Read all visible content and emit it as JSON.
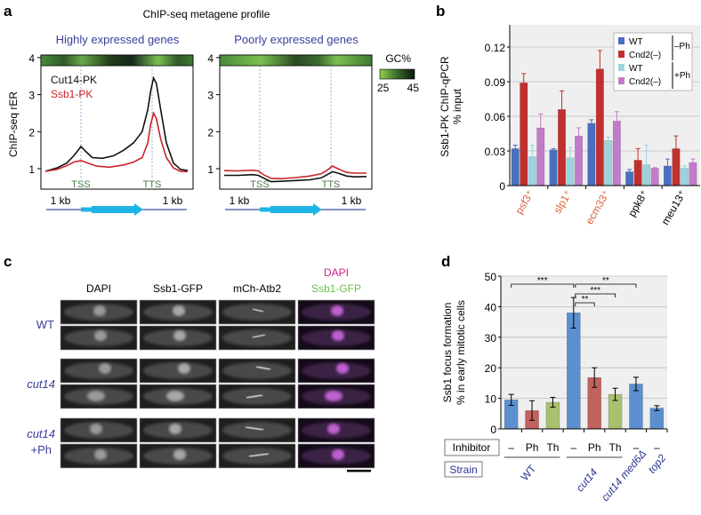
{
  "panels": {
    "a": {
      "letter": "a",
      "title": "ChIP-seq metagene profile",
      "subtitle_left": "Highly expressed genes",
      "subtitle_right": "Poorly expressed genes",
      "ylabel": "ChIP-seq rER",
      "legend_cut14": "Cut14-PK",
      "legend_ssb1": "Ssb1-PK",
      "gc_label": "GC%",
      "gc_min": "25",
      "gc_max": "45",
      "tss": "TSS",
      "tts": "TTS",
      "kb_left": "1 kb",
      "kb_right": "1 kb"
    },
    "b": {
      "letter": "b",
      "ylabel1": "Ssb1-PK ChIP-qPCR",
      "ylabel2": "% input",
      "legend_minus_ph": "–Ph",
      "legend_plus_ph": "+Ph"
    },
    "c": {
      "letter": "c",
      "columns": [
        "DAPI",
        "Ssb1-GFP",
        "mCh-Atb2"
      ],
      "merge_top": "DAPI",
      "merge_bottom": "Ssb1-GFP",
      "rows": [
        "WT",
        "cut14",
        "cut14",
        "+Ph"
      ]
    },
    "d": {
      "letter": "d",
      "ylabel1": "Ssb1 focus formation",
      "ylabel2": "% in early mitotic cells",
      "inhibitor_label": "Inhibitor",
      "strain_label": "Strain"
    }
  },
  "colors": {
    "cut14": "#111111",
    "ssb1": "#c8242b",
    "b_wt": "#4a6fc0",
    "b_cnd2": "#c0302e",
    "b_wt_ph": "#9dd2de",
    "b_cnd2_ph": "#c07cc8",
    "d_none": "#5b8fd0",
    "d_ph": "#c0625e",
    "d_th": "#a9c06e",
    "gene": "#1fb4e6",
    "axis_blue": "#4050a0",
    "orange": "#d9603a",
    "tss_green": "#4a7a4a"
  },
  "chart_data": [
    {
      "type": "line",
      "title": "Highly expressed genes",
      "ylabel": "ChIP-seq rER",
      "ylim": [
        0.45,
        4
      ],
      "yticks": [
        1,
        2,
        3,
        4
      ],
      "x_units": "metagene position (%; TSS=25, TTS=75)",
      "series": [
        {
          "name": "Cut14-PK",
          "x": [
            0,
            8,
            15,
            20,
            23,
            25,
            28,
            33,
            40,
            48,
            55,
            62,
            68,
            72,
            74,
            76,
            78,
            81,
            85,
            90,
            95,
            100
          ],
          "y": [
            0.93,
            1.02,
            1.15,
            1.35,
            1.5,
            1.6,
            1.48,
            1.3,
            1.28,
            1.35,
            1.5,
            1.7,
            2.0,
            2.6,
            3.1,
            3.45,
            3.3,
            2.6,
            1.7,
            1.15,
            0.98,
            0.95
          ]
        },
        {
          "name": "Ssb1-PK",
          "x": [
            0,
            8,
            15,
            20,
            25,
            30,
            36,
            45,
            55,
            62,
            68,
            72,
            74,
            76,
            78,
            81,
            85,
            90,
            95,
            100
          ],
          "y": [
            0.93,
            0.98,
            1.08,
            1.18,
            1.22,
            1.15,
            1.07,
            1.04,
            1.1,
            1.18,
            1.3,
            1.7,
            2.2,
            2.5,
            2.35,
            1.8,
            1.3,
            1.02,
            0.93,
            0.92
          ]
        }
      ]
    },
    {
      "type": "line",
      "title": "Poorly expressed genes",
      "ylim": [
        0.45,
        4
      ],
      "yticks": [
        1,
        2,
        3,
        4
      ],
      "series": [
        {
          "name": "Cut14-PK",
          "x": [
            0,
            10,
            20,
            24,
            28,
            33,
            40,
            50,
            60,
            68,
            72,
            76,
            80,
            86,
            92,
            100
          ],
          "y": [
            0.82,
            0.82,
            0.84,
            0.82,
            0.74,
            0.65,
            0.66,
            0.68,
            0.7,
            0.75,
            0.83,
            0.92,
            0.88,
            0.8,
            0.78,
            0.79
          ]
        },
        {
          "name": "Ssb1-PK",
          "x": [
            0,
            10,
            20,
            24,
            28,
            33,
            40,
            50,
            60,
            68,
            72,
            76,
            80,
            86,
            92,
            100
          ],
          "y": [
            0.95,
            0.94,
            0.96,
            0.94,
            0.83,
            0.74,
            0.73,
            0.76,
            0.8,
            0.86,
            0.95,
            1.07,
            1.0,
            0.9,
            0.88,
            0.88
          ]
        }
      ]
    },
    {
      "type": "bar",
      "ylabel": "Ssb1-PK ChIP-qPCR % input",
      "ylim": [
        0,
        0.14
      ],
      "yticks": [
        "0",
        "0.03",
        "0.06",
        "0.09",
        "0.12"
      ],
      "categories": [
        "psf3⁺",
        "slp1⁺",
        "ecm33⁺",
        "ppk8⁺",
        "meu13⁺"
      ],
      "highlighted_categories": 3,
      "series": [
        {
          "name": "WT",
          "group": "–Ph",
          "values": [
            0.032,
            0.031,
            0.054,
            0.012,
            0.017
          ],
          "err": [
            0.003,
            0.001,
            0.003,
            0.002,
            0.006
          ]
        },
        {
          "name": "Cnd2(–)",
          "group": "–Ph",
          "values": [
            0.089,
            0.066,
            0.101,
            0.022,
            0.032
          ],
          "err": [
            0.008,
            0.016,
            0.016,
            0.01,
            0.011
          ]
        },
        {
          "name": "WT",
          "group": "+Ph",
          "values": [
            0.025,
            0.024,
            0.039,
            0.018,
            0.015
          ],
          "err": [
            0.01,
            0.009,
            0.003,
            0.017,
            0.002
          ]
        },
        {
          "name": "Cnd2(–)",
          "group": "+Ph",
          "values": [
            0.05,
            0.043,
            0.056,
            0.015,
            0.02
          ],
          "err": [
            0.012,
            0.007,
            0.008,
            0.0005,
            0.003
          ]
        }
      ]
    },
    {
      "type": "bar",
      "ylabel": "Ssb1 focus formation % in early mitotic cells",
      "ylim": [
        0,
        50
      ],
      "yticks": [
        "0",
        "10",
        "20",
        "30",
        "40",
        "50"
      ],
      "inhibitor": [
        "–",
        "Ph",
        "Th",
        "–",
        "Ph",
        "Th",
        "–",
        "–"
      ],
      "strains": [
        "WT",
        "cut14",
        "cut14 med6Δ",
        "top2"
      ],
      "values": [
        9.5,
        6.0,
        8.7,
        38.0,
        16.8,
        11.3,
        14.7,
        6.8
      ],
      "err": [
        1.8,
        3.2,
        1.6,
        5.0,
        3.2,
        2.0,
        2.2,
        0.8
      ],
      "significance": [
        {
          "from": 1,
          "to": 4,
          "label": "***"
        },
        {
          "from": 4,
          "to": 7,
          "label": "**"
        },
        {
          "from": 4,
          "to": 6,
          "label": "***"
        },
        {
          "from": 4,
          "to": 5,
          "label": "**"
        }
      ]
    }
  ]
}
